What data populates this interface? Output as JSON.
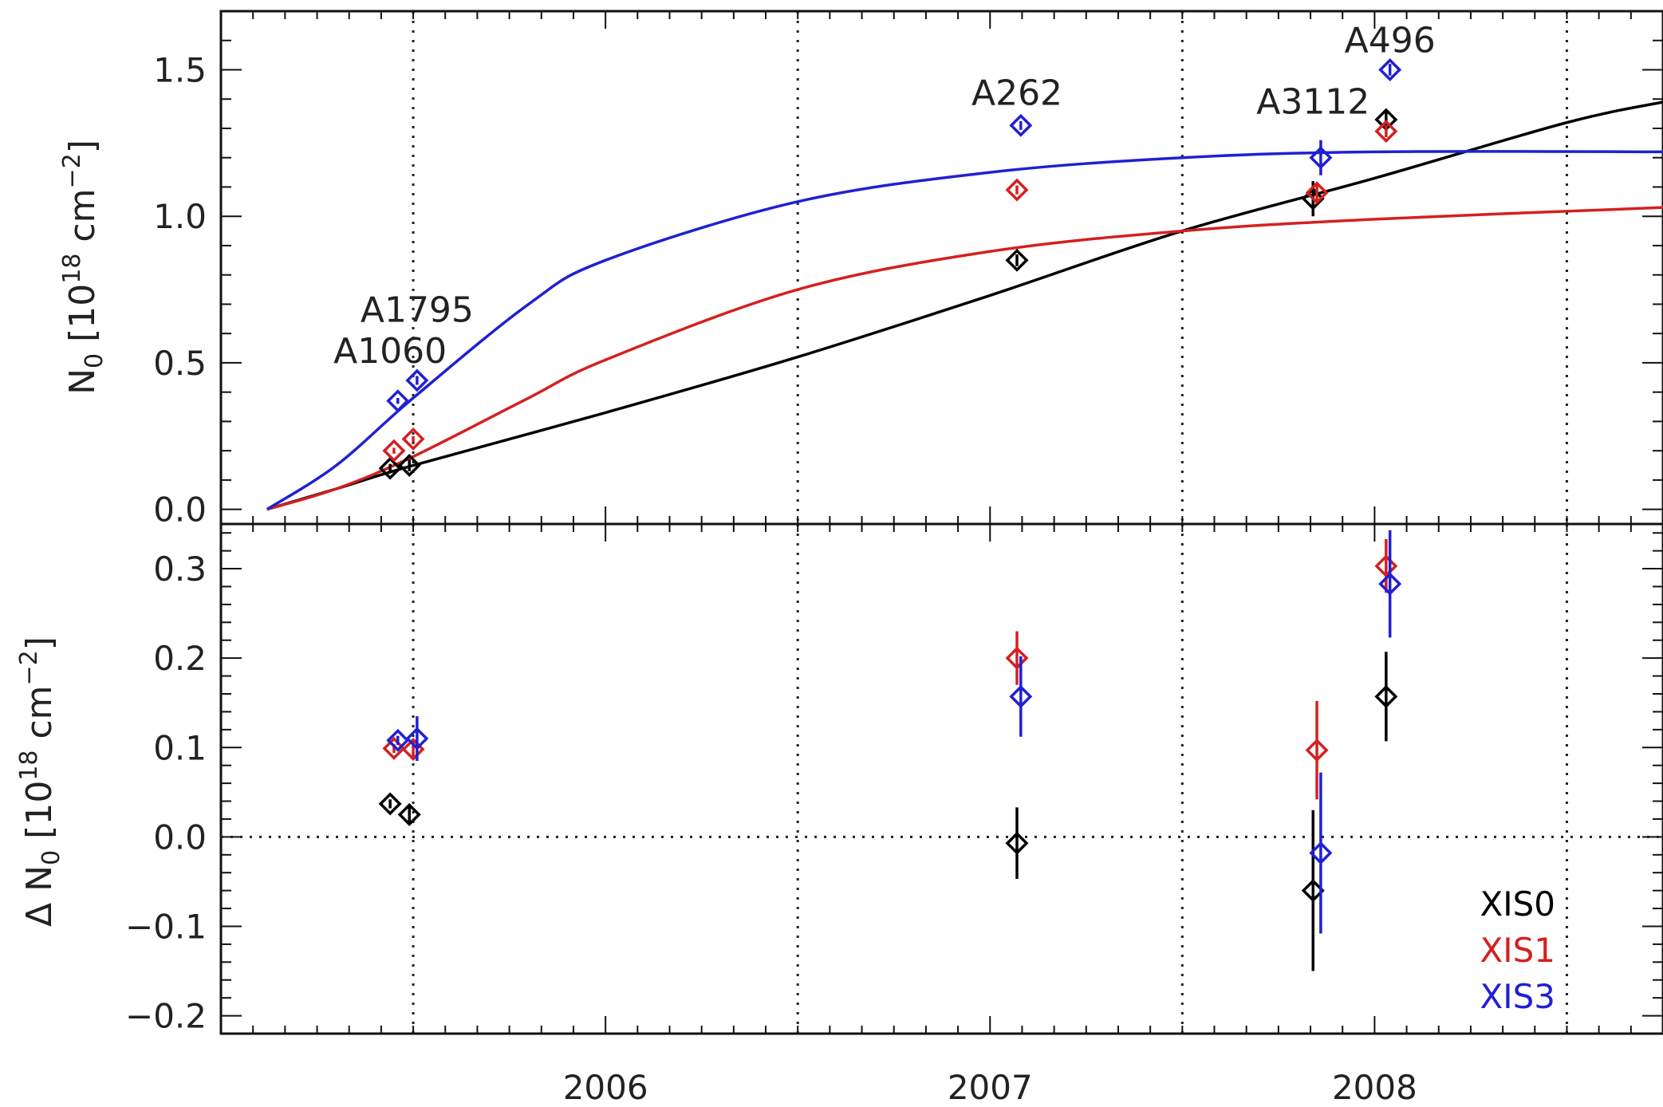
{
  "chart_data": [
    {
      "panel": "top",
      "type": "scatter",
      "ylabel": "N_0 [10^18 cm^-2]",
      "ylabel_parts": {
        "base": "N",
        "sub": "0",
        "pre": "[10",
        "exp": "18",
        "unit": " cm",
        "uexp": "−2",
        "close": "]"
      },
      "ylim": [
        -0.05,
        1.7
      ],
      "yticks": [
        "0.0",
        "0.5",
        "1.0",
        "1.5"
      ],
      "grid": "vertical dotted at 2005.5, 2006.5, 2007.5, 2008.5",
      "series": [
        {
          "name": "XIS0",
          "color": "#000000",
          "points": [
            [
              2005.44,
              0.14,
              0.015
            ],
            [
              2005.49,
              0.15,
              0.02
            ],
            [
              2007.07,
              0.85,
              0.02
            ],
            [
              2007.84,
              1.06,
              0.06
            ],
            [
              2008.03,
              1.33,
              0.025
            ]
          ]
        },
        {
          "name": "XIS1",
          "color": "#d42020",
          "points": [
            [
              2005.45,
              0.2,
              0.01
            ],
            [
              2005.5,
              0.24,
              0.01
            ],
            [
              2007.07,
              1.09,
              0.015
            ],
            [
              2007.85,
              1.08,
              0.03
            ],
            [
              2008.03,
              1.29,
              0.02
            ]
          ]
        },
        {
          "name": "XIS3",
          "color": "#2020d4",
          "points": [
            [
              2005.46,
              0.37,
              0.01
            ],
            [
              2005.51,
              0.44,
              0.015
            ],
            [
              2007.08,
              1.31,
              0.015
            ],
            [
              2007.86,
              1.2,
              0.06
            ],
            [
              2008.04,
              1.5,
              0.02
            ]
          ]
        }
      ],
      "fits": [
        {
          "series": "XIS0",
          "color": "#000000",
          "x": [
            2005.12,
            2005.3,
            2005.5,
            2006.0,
            2006.5,
            2007.0,
            2007.5,
            2008.0,
            2008.5,
            2008.75
          ],
          "y": [
            0.0,
            0.07,
            0.15,
            0.33,
            0.52,
            0.73,
            0.95,
            1.13,
            1.32,
            1.39
          ]
        },
        {
          "series": "XIS1",
          "color": "#d42020",
          "x": [
            2005.12,
            2005.3,
            2005.5,
            2005.8,
            2006.0,
            2006.5,
            2007.0,
            2007.5,
            2008.0,
            2008.75
          ],
          "y": [
            0.0,
            0.07,
            0.18,
            0.38,
            0.51,
            0.75,
            0.88,
            0.95,
            0.99,
            1.03
          ]
        },
        {
          "series": "XIS3",
          "color": "#2020d4",
          "x": [
            2005.12,
            2005.3,
            2005.5,
            2005.8,
            2006.0,
            2006.5,
            2007.0,
            2007.5,
            2008.0,
            2008.75
          ],
          "y": [
            0.0,
            0.15,
            0.38,
            0.7,
            0.85,
            1.05,
            1.15,
            1.2,
            1.22,
            1.22
          ]
        }
      ],
      "annotations": [
        {
          "text": "A1060",
          "x": 2005.44,
          "y": 0.5
        },
        {
          "text": "A1795",
          "x": 2005.51,
          "y": 0.64
        },
        {
          "text": "A262",
          "x": 2007.07,
          "y": 1.38
        },
        {
          "text": "A3112",
          "x": 2007.84,
          "y": 1.35
        },
        {
          "text": "A496",
          "x": 2008.04,
          "y": 1.56
        }
      ]
    },
    {
      "panel": "bottom",
      "type": "scatter",
      "ylabel": "Δ N_0 [10^18 cm^-2]",
      "ylabel_parts": {
        "delta": "Δ",
        "base": "N",
        "sub": "0",
        "pre": "[10",
        "exp": "18",
        "unit": " cm",
        "uexp": "−2",
        "close": "]"
      },
      "ylim": [
        -0.22,
        0.35
      ],
      "yticks": [
        "0.3",
        "0.2",
        "0.1",
        "0.0",
        "−0.1",
        "−0.2"
      ],
      "xlim": [
        2005.0,
        2008.75
      ],
      "xticks": [
        "2006",
        "2007",
        "2008"
      ],
      "reference_line": 0.0,
      "series": [
        {
          "name": "XIS0",
          "color": "#000000",
          "points": [
            [
              2005.44,
              0.037,
              0.005
            ],
            [
              2005.49,
              0.025,
              0.01
            ],
            [
              2007.07,
              -0.007,
              0.04
            ],
            [
              2007.84,
              -0.06,
              0.09
            ],
            [
              2008.03,
              0.157,
              0.05
            ]
          ]
        },
        {
          "name": "XIS1",
          "color": "#d42020",
          "points": [
            [
              2005.45,
              0.099,
              0.005
            ],
            [
              2005.5,
              0.098,
              0.01
            ],
            [
              2007.07,
              0.2,
              0.03
            ],
            [
              2007.85,
              0.097,
              0.055
            ],
            [
              2008.03,
              0.303,
              0.03
            ]
          ]
        },
        {
          "name": "XIS3",
          "color": "#2020d4",
          "points": [
            [
              2005.46,
              0.108,
              0.005
            ],
            [
              2005.51,
              0.11,
              0.025
            ],
            [
              2007.08,
              0.157,
              0.045
            ],
            [
              2007.86,
              -0.018,
              0.09
            ],
            [
              2008.04,
              0.283,
              0.06
            ]
          ]
        }
      ]
    }
  ],
  "legend": [
    {
      "label": "XIS0",
      "color": "#000000"
    },
    {
      "label": "XIS1",
      "color": "#d42020"
    },
    {
      "label": "XIS3",
      "color": "#2020d4"
    }
  ]
}
